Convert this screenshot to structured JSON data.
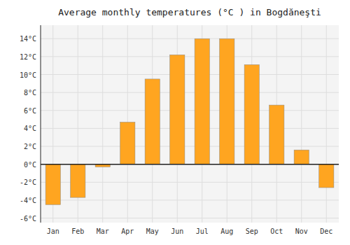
{
  "chart_data": {
    "type": "bar",
    "title": "Average monthly temperatures (°C ) in Bogdăneşti",
    "categories": [
      "Jan",
      "Feb",
      "Mar",
      "Apr",
      "May",
      "Jun",
      "Jul",
      "Aug",
      "Sep",
      "Oct",
      "Nov",
      "Dec"
    ],
    "values": [
      -4.5,
      -3.7,
      -0.3,
      4.7,
      9.5,
      12.2,
      14.0,
      14.0,
      11.1,
      6.6,
      1.6,
      -2.6
    ],
    "color": "#FFA520",
    "ylim": [
      -6.5,
      15.5
    ],
    "yticks": [
      {
        "value": -6,
        "label": "-6°C"
      },
      {
        "value": -4,
        "label": "-4°C"
      },
      {
        "value": -2,
        "label": "-2°C"
      },
      {
        "value": 0,
        "label": "0°C"
      },
      {
        "value": 2,
        "label": "2°C"
      },
      {
        "value": 4,
        "label": "4°C"
      },
      {
        "value": 6,
        "label": "6°C"
      },
      {
        "value": 8,
        "label": "8°C"
      },
      {
        "value": 10,
        "label": "10°C"
      },
      {
        "value": 12,
        "label": "12°C"
      },
      {
        "value": 14,
        "label": "14°C"
      }
    ],
    "grid": true
  }
}
